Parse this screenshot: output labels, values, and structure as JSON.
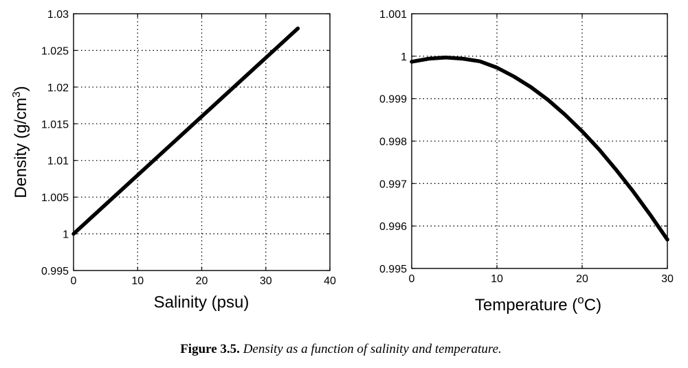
{
  "caption": {
    "label": "Figure 3.5.",
    "text": "Density as a function of salinity and temperature."
  },
  "chart_data": [
    {
      "type": "line",
      "xlabel": "Salinity (psu)",
      "ylabel": "Density (g/cm3)",
      "xlim": [
        0,
        40
      ],
      "ylim": [
        0.995,
        1.03
      ],
      "xticks": [
        "0",
        "10",
        "20",
        "30",
        "40"
      ],
      "yticks": [
        "0.995",
        "1",
        "1.005",
        "1.01",
        "1.015",
        "1.02",
        "1.025",
        "1.03"
      ],
      "grid": true,
      "series": [
        {
          "x": [
            0,
            35
          ],
          "y": [
            1.0,
            1.028
          ]
        }
      ]
    },
    {
      "type": "line",
      "xlabel": "Temperature (oC)",
      "ylabel": "",
      "xlim": [
        0,
        30
      ],
      "ylim": [
        0.995,
        1.001
      ],
      "xticks": [
        "0",
        "10",
        "20",
        "30"
      ],
      "yticks": [
        "0.995",
        "0.996",
        "0.997",
        "0.998",
        "0.999",
        "1",
        "1.001"
      ],
      "grid": true,
      "series": [
        {
          "x": [
            0,
            2,
            4,
            6,
            8,
            10,
            12,
            14,
            16,
            18,
            20,
            22,
            24,
            26,
            28,
            30
          ],
          "y": [
            0.99987,
            0.99994,
            0.99997,
            0.99994,
            0.99988,
            0.99973,
            0.99952,
            0.99927,
            0.99897,
            0.99862,
            0.99823,
            0.9978,
            0.99732,
            0.99681,
            0.99626,
            0.99568
          ]
        }
      ]
    }
  ]
}
